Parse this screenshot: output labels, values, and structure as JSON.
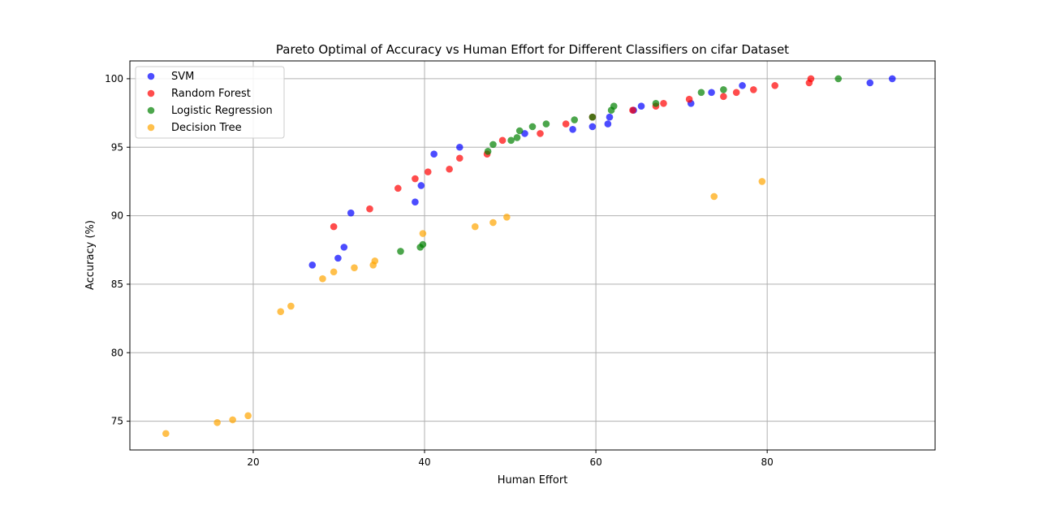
{
  "chart_data": {
    "type": "scatter",
    "title": "Pareto Optimal of Accuracy vs Human Effort for Different Classifiers on cifar Dataset",
    "xlabel": "Human Effort",
    "ylabel": "Accuracy (%)",
    "xlim": [
      5.6,
      99.6
    ],
    "ylim": [
      72.9,
      101.3
    ],
    "xticks": [
      20,
      40,
      60,
      80
    ],
    "yticks": [
      75,
      80,
      85,
      90,
      95,
      100
    ],
    "grid": true,
    "legend_position": "top-left",
    "series": [
      {
        "name": "SVM",
        "color": "#0000ff",
        "points": [
          [
            26.9,
            86.4
          ],
          [
            29.9,
            86.9
          ],
          [
            30.6,
            87.7
          ],
          [
            31.4,
            90.2
          ],
          [
            38.9,
            91.0
          ],
          [
            39.6,
            92.2
          ],
          [
            41.1,
            94.5
          ],
          [
            44.1,
            95.0
          ],
          [
            51.7,
            96.0
          ],
          [
            57.3,
            96.3
          ],
          [
            59.6,
            96.5
          ],
          [
            61.4,
            96.7
          ],
          [
            61.6,
            97.2
          ],
          [
            64.4,
            97.7
          ],
          [
            65.3,
            98.0
          ],
          [
            71.1,
            98.2
          ],
          [
            73.5,
            99.0
          ],
          [
            77.1,
            99.5
          ],
          [
            92.0,
            99.7
          ],
          [
            94.6,
            100.0
          ]
        ]
      },
      {
        "name": "Random Forest",
        "color": "#ff0000",
        "points": [
          [
            29.4,
            89.2
          ],
          [
            33.6,
            90.5
          ],
          [
            36.9,
            92.0
          ],
          [
            38.9,
            92.7
          ],
          [
            40.4,
            93.2
          ],
          [
            42.9,
            93.4
          ],
          [
            44.1,
            94.2
          ],
          [
            47.3,
            94.5
          ],
          [
            49.1,
            95.5
          ],
          [
            53.5,
            96.0
          ],
          [
            56.5,
            96.7
          ],
          [
            59.6,
            97.2
          ],
          [
            64.3,
            97.7
          ],
          [
            67.0,
            98.0
          ],
          [
            67.9,
            98.2
          ],
          [
            70.9,
            98.5
          ],
          [
            74.9,
            98.7
          ],
          [
            76.4,
            99.0
          ],
          [
            78.4,
            99.2
          ],
          [
            80.9,
            99.5
          ],
          [
            84.9,
            99.7
          ],
          [
            85.1,
            100.0
          ]
        ]
      },
      {
        "name": "Logistic Regression",
        "color": "#008000",
        "points": [
          [
            37.2,
            87.4
          ],
          [
            39.5,
            87.7
          ],
          [
            39.8,
            87.9
          ],
          [
            47.4,
            94.7
          ],
          [
            48.0,
            95.2
          ],
          [
            50.1,
            95.5
          ],
          [
            50.8,
            95.7
          ],
          [
            51.1,
            96.2
          ],
          [
            52.6,
            96.5
          ],
          [
            54.2,
            96.7
          ],
          [
            57.5,
            97.0
          ],
          [
            59.6,
            97.2
          ],
          [
            61.8,
            97.7
          ],
          [
            62.1,
            98.0
          ],
          [
            67.0,
            98.2
          ],
          [
            72.3,
            99.0
          ],
          [
            74.9,
            99.2
          ],
          [
            88.3,
            100.0
          ]
        ]
      },
      {
        "name": "Decision Tree",
        "color": "#ffa500",
        "points": [
          [
            9.8,
            74.1
          ],
          [
            15.8,
            74.9
          ],
          [
            17.6,
            75.1
          ],
          [
            19.4,
            75.4
          ],
          [
            23.2,
            83.0
          ],
          [
            24.4,
            83.4
          ],
          [
            28.1,
            85.4
          ],
          [
            29.4,
            85.9
          ],
          [
            31.8,
            86.2
          ],
          [
            34.0,
            86.4
          ],
          [
            34.2,
            86.7
          ],
          [
            39.8,
            88.7
          ],
          [
            45.9,
            89.2
          ],
          [
            48.0,
            89.5
          ],
          [
            49.6,
            89.9
          ],
          [
            73.8,
            91.4
          ],
          [
            79.4,
            92.5
          ]
        ]
      }
    ]
  }
}
